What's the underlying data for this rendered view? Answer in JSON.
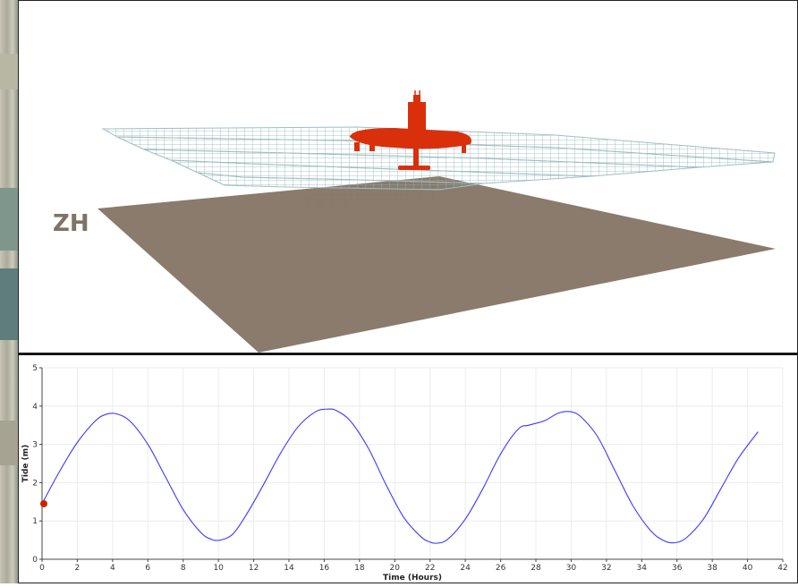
{
  "scene": {
    "label": "ZH",
    "colors": {
      "seabed": "#8b7b6c",
      "mesh": "#9fbfc3",
      "drone": "#d9300b",
      "label": "#7f7365"
    }
  },
  "chart_data": {
    "type": "line",
    "xlabel": "Time (Hours)",
    "ylabel": "Tide (m)",
    "xlim": [
      0,
      42
    ],
    "ylim": [
      0,
      5
    ],
    "xticks": [
      0,
      2,
      4,
      6,
      8,
      10,
      12,
      14,
      16,
      18,
      20,
      22,
      24,
      26,
      28,
      30,
      32,
      34,
      36,
      38,
      40,
      42
    ],
    "yticks": [
      0,
      1,
      2,
      3,
      4,
      5
    ],
    "grid": true,
    "series": [
      {
        "color": "#3a3aff",
        "x": [
          0,
          1,
          2,
          3,
          3.6,
          4.2,
          5,
          6,
          7,
          8,
          9,
          9.6,
          10.1,
          10.8,
          11.5,
          12.5,
          13.5,
          14.5,
          15.5,
          16.2,
          16.7,
          17.5,
          18.5,
          19.5,
          20.5,
          21.5,
          22,
          22.4,
          23,
          24,
          25,
          26,
          27,
          27.6,
          28.5,
          29.3,
          30,
          30.6,
          31.5,
          32.5,
          33.5,
          34.5,
          35.2,
          35.8,
          36.5,
          37.5,
          38.5,
          39.5,
          40.6
        ],
        "y": [
          1.45,
          2.3,
          3.05,
          3.6,
          3.78,
          3.8,
          3.6,
          3.0,
          2.15,
          1.3,
          0.7,
          0.52,
          0.5,
          0.65,
          1.1,
          1.9,
          2.75,
          3.45,
          3.85,
          3.92,
          3.88,
          3.6,
          2.9,
          1.95,
          1.1,
          0.58,
          0.45,
          0.42,
          0.52,
          1.05,
          1.85,
          2.75,
          3.4,
          3.5,
          3.62,
          3.82,
          3.85,
          3.7,
          3.2,
          2.3,
          1.4,
          0.75,
          0.5,
          0.43,
          0.55,
          1.05,
          1.85,
          2.65,
          3.33
        ]
      }
    ],
    "marker": {
      "x": 0,
      "y": 1.45,
      "color": "#cc2200"
    }
  }
}
